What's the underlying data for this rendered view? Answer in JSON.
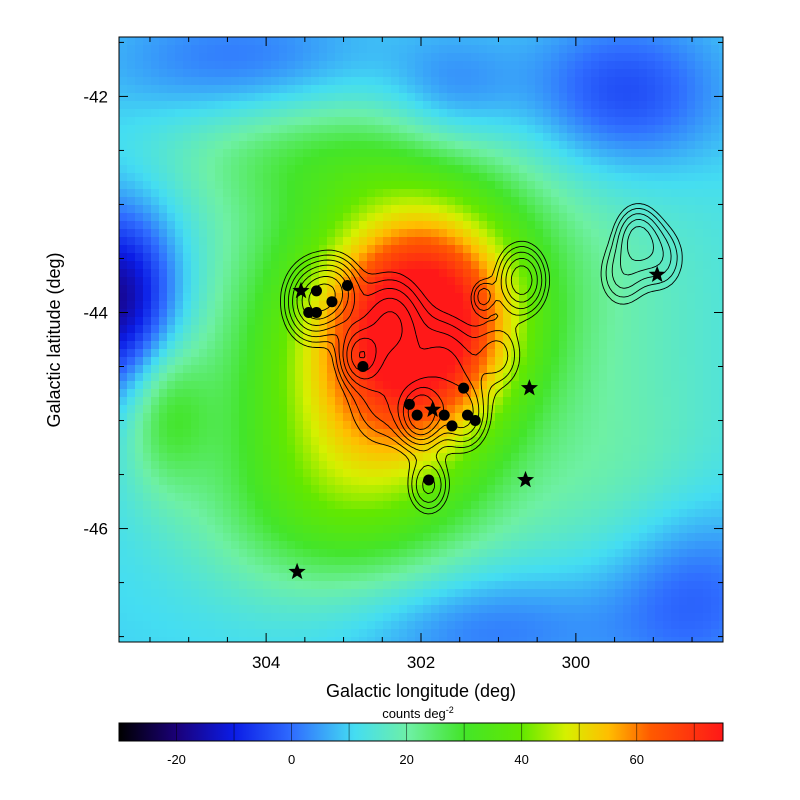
{
  "chart_data": {
    "type": "heatmap",
    "title": "",
    "xlabel": "Galactic longitude (deg)",
    "ylabel": "Galactic latitude (deg)",
    "xlim": [
      305.9,
      298.1
    ],
    "ylim": [
      -47.05,
      -41.45
    ],
    "x_reversed": true,
    "x_ticks": [
      304,
      302,
      300
    ],
    "y_ticks": [
      -42,
      -44,
      -46
    ],
    "colorbar": {
      "label": "counts deg",
      "label_superscript": "-2",
      "range": [
        -30,
        75
      ],
      "ticks": [
        -20,
        0,
        20,
        40,
        60
      ],
      "colormap": "rainbow (black-blue-cyan-green-yellow-red)"
    },
    "grid": false,
    "map_blobs": [
      {
        "l": 301.9,
        "b": -44.1,
        "amp": 48,
        "sl": 0.85,
        "sb": 0.75
      },
      {
        "l": 302.9,
        "b": -44.9,
        "amp": 28,
        "sl": 1.2,
        "sb": 0.9
      },
      {
        "l": 302.4,
        "b": -43.5,
        "amp": 18,
        "sl": 1.6,
        "sb": 0.9
      },
      {
        "l": 305.3,
        "b": -44.9,
        "amp": 16,
        "sl": 0.4,
        "sb": 0.5
      },
      {
        "l": 303.0,
        "b": -45.9,
        "amp": 12,
        "sl": 1.4,
        "sb": 0.6
      },
      {
        "l": 303.6,
        "b": -42.5,
        "amp": 10,
        "sl": 1.4,
        "sb": 0.4
      },
      {
        "l": 299.6,
        "b": -43.9,
        "amp": 6,
        "sl": 1.5,
        "sb": 1.2
      },
      {
        "l": 299.4,
        "b": -45.6,
        "amp": 6,
        "sl": 1.0,
        "sb": 0.7
      },
      {
        "l": 305.9,
        "b": -43.9,
        "amp": -30,
        "sl": 0.55,
        "sb": 0.6
      },
      {
        "l": 299.4,
        "b": -42.0,
        "amp": -16,
        "sl": 0.9,
        "sb": 0.5
      },
      {
        "l": 301.6,
        "b": -42.0,
        "amp": -10,
        "sl": 0.6,
        "sb": 0.4
      },
      {
        "l": 304.3,
        "b": -41.7,
        "amp": -10,
        "sl": 1.2,
        "sb": 0.4
      },
      {
        "l": 298.5,
        "b": -46.6,
        "amp": -12,
        "sl": 0.8,
        "sb": 0.6
      },
      {
        "l": 301.2,
        "b": -46.9,
        "amp": -10,
        "sl": 1.2,
        "sb": 0.4
      }
    ],
    "map_background": 10,
    "contour_peaks": [
      {
        "l": 303.4,
        "b": -43.9,
        "amp": 7,
        "s": 0.22
      },
      {
        "l": 303.1,
        "b": -43.8,
        "amp": 5,
        "s": 0.2
      },
      {
        "l": 302.8,
        "b": -44.4,
        "amp": 6,
        "s": 0.17
      },
      {
        "l": 302.0,
        "b": -44.95,
        "amp": 9,
        "s": 0.18
      },
      {
        "l": 301.45,
        "b": -44.95,
        "amp": 5,
        "s": 0.2
      },
      {
        "l": 302.4,
        "b": -44.1,
        "amp": 5,
        "s": 0.28
      },
      {
        "l": 301.7,
        "b": -44.5,
        "amp": 4,
        "s": 0.3
      },
      {
        "l": 301.0,
        "b": -44.4,
        "amp": 3,
        "s": 0.2
      },
      {
        "l": 302.5,
        "b": -44.8,
        "amp": 3,
        "s": 0.3
      },
      {
        "l": 301.9,
        "b": -45.6,
        "amp": 4,
        "s": 0.17
      },
      {
        "l": 300.7,
        "b": -43.7,
        "amp": 6,
        "s": 0.2
      },
      {
        "l": 301.2,
        "b": -43.85,
        "amp": 3,
        "s": 0.1
      },
      {
        "l": 299.2,
        "b": -43.3,
        "amp": 5,
        "s": 0.18
      },
      {
        "l": 299.4,
        "b": -43.65,
        "amp": 3,
        "s": 0.2
      },
      {
        "l": 298.9,
        "b": -43.5,
        "amp": 3,
        "s": 0.2
      }
    ],
    "contour_levels": [
      1.2,
      1.8,
      2.6,
      3.6,
      4.8,
      6.2,
      7.8
    ],
    "dots": [
      {
        "l": 303.35,
        "b": -43.8
      },
      {
        "l": 302.95,
        "b": -43.75
      },
      {
        "l": 303.15,
        "b": -43.9
      },
      {
        "l": 303.45,
        "b": -44.0
      },
      {
        "l": 303.35,
        "b": -44.0
      },
      {
        "l": 302.75,
        "b": -44.5
      },
      {
        "l": 301.45,
        "b": -44.7
      },
      {
        "l": 302.15,
        "b": -44.85
      },
      {
        "l": 302.05,
        "b": -44.95
      },
      {
        "l": 301.7,
        "b": -44.95
      },
      {
        "l": 301.4,
        "b": -44.95
      },
      {
        "l": 301.3,
        "b": -45.0
      },
      {
        "l": 301.6,
        "b": -45.05
      },
      {
        "l": 301.9,
        "b": -45.55
      }
    ],
    "stars": [
      {
        "l": 303.55,
        "b": -43.8
      },
      {
        "l": 301.85,
        "b": -44.9
      },
      {
        "l": 300.6,
        "b": -44.7
      },
      {
        "l": 300.65,
        "b": -45.55
      },
      {
        "l": 298.95,
        "b": -43.65
      },
      {
        "l": 303.6,
        "b": -46.4
      }
    ]
  }
}
